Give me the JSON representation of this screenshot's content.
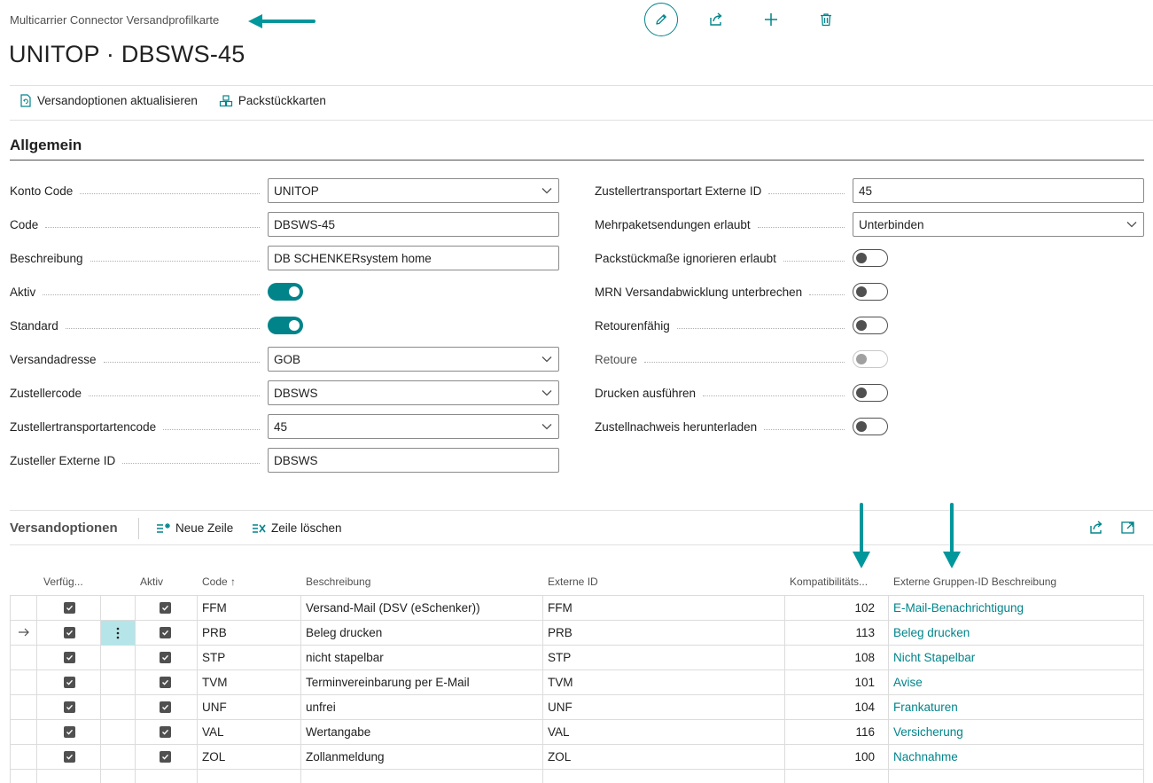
{
  "page": {
    "breadcrumb": "Multicarrier Connector Versandprofilkarte",
    "title": "UNITOP · DBSWS-45"
  },
  "top_actions": [
    "edit-icon",
    "share-icon",
    "new-icon",
    "delete-icon"
  ],
  "action_bar": {
    "update_options": "Versandoptionen aktualisieren",
    "package_cards": "Packstückkarten"
  },
  "general": {
    "title": "Allgemein",
    "left": {
      "konto_code": {
        "label": "Konto Code",
        "value": "UNITOP"
      },
      "code": {
        "label": "Code",
        "value": "DBSWS-45"
      },
      "beschreibung": {
        "label": "Beschreibung",
        "value": "DB SCHENKERsystem home"
      },
      "aktiv": {
        "label": "Aktiv",
        "value": true
      },
      "standard": {
        "label": "Standard",
        "value": true
      },
      "versandadresse": {
        "label": "Versandadresse",
        "value": "GOB"
      },
      "zustellercode": {
        "label": "Zustellercode",
        "value": "DBSWS"
      },
      "transportartencode": {
        "label": "Zustellertransportartencode",
        "value": "45"
      },
      "zusteller_ext_id": {
        "label": "Zusteller Externe ID",
        "value": "DBSWS"
      }
    },
    "right": {
      "transportart_ext_id": {
        "label": "Zustellertransportart Externe ID",
        "value": "45"
      },
      "mehrpaket": {
        "label": "Mehrpaketsendungen erlaubt",
        "value": "Unterbinden"
      },
      "packstueck_ignore": {
        "label": "Packstückmaße ignorieren erlaubt",
        "value": false
      },
      "mrn": {
        "label": "MRN Versandabwicklung unterbrechen",
        "value": false
      },
      "retourenfaehig": {
        "label": "Retourenfähig",
        "value": false
      },
      "retoure": {
        "label": "Retoure",
        "value": false
      },
      "drucken": {
        "label": "Drucken ausführen",
        "value": false
      },
      "zustellnachweis": {
        "label": "Zustellnachweis herunterladen",
        "value": false
      }
    }
  },
  "versandoptionen": {
    "title": "Versandoptionen",
    "new_line": "Neue Zeile",
    "delete_line": "Zeile löschen",
    "columns": {
      "verfuegbar": "Verfüg...",
      "aktiv": "Aktiv",
      "code": "Code ↑",
      "beschreibung": "Beschreibung",
      "externe_id": "Externe ID",
      "kompatibilitaet": "Kompatibilitäts...",
      "gruppen": "Externe Gruppen-ID Beschreibung"
    },
    "rows": [
      {
        "code": "FFM",
        "beschreibung": "Versand-Mail (DSV (eSchenker))",
        "externe_id": "FFM",
        "kompat": "102",
        "gruppe": "E-Mail-Benachrichtigung"
      },
      {
        "code": "PRB",
        "beschreibung": "Beleg drucken",
        "externe_id": "PRB",
        "kompat": "113",
        "gruppe": "Beleg drucken"
      },
      {
        "code": "STP",
        "beschreibung": "nicht stapelbar",
        "externe_id": "STP",
        "kompat": "108",
        "gruppe": "Nicht Stapelbar"
      },
      {
        "code": "TVM",
        "beschreibung": "Terminvereinbarung per E-Mail",
        "externe_id": "TVM",
        "kompat": "101",
        "gruppe": "Avise"
      },
      {
        "code": "UNF",
        "beschreibung": "unfrei",
        "externe_id": "UNF",
        "kompat": "104",
        "gruppe": "Frankaturen"
      },
      {
        "code": "VAL",
        "beschreibung": "Wertangabe",
        "externe_id": "VAL",
        "kompat": "116",
        "gruppe": "Versicherung"
      },
      {
        "code": "ZOL",
        "beschreibung": "Zollanmeldung",
        "externe_id": "ZOL",
        "kompat": "100",
        "gruppe": "Nachnahme"
      }
    ]
  },
  "colors": {
    "accent": "#00848a",
    "arrow": "#00979c",
    "selected_cell": "#b5e5e8"
  }
}
